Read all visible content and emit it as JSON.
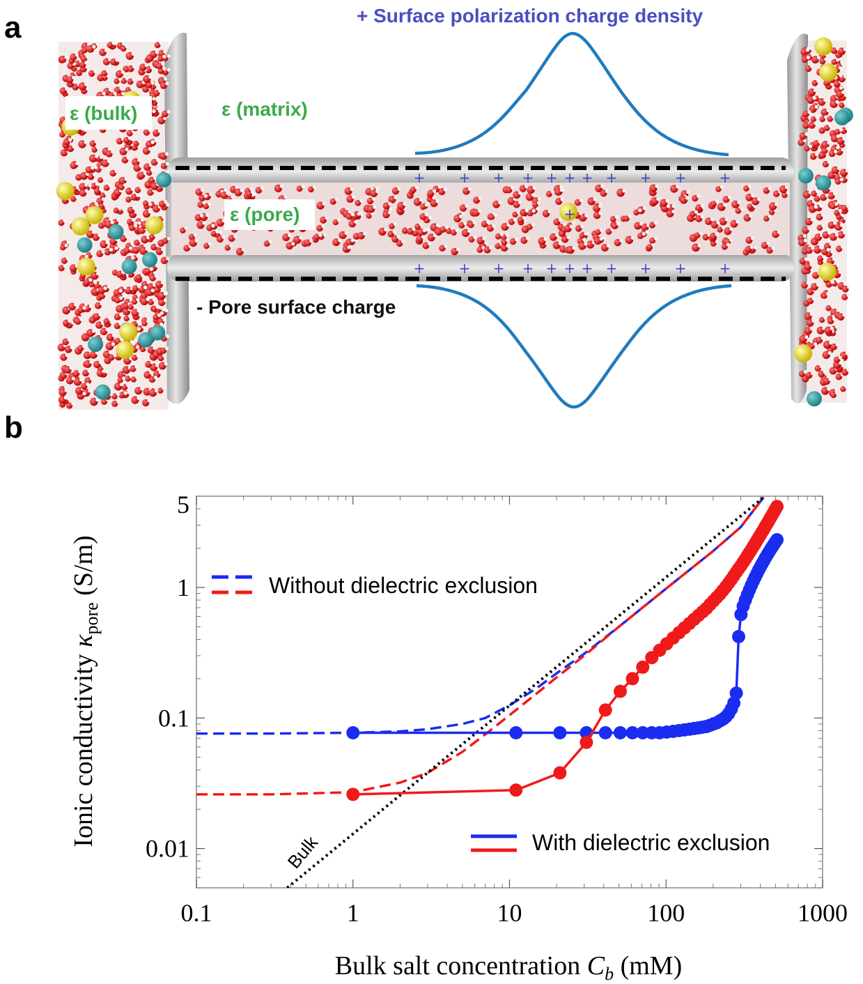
{
  "panel_a": {
    "label": "a",
    "eps_bulk": "ε (bulk)",
    "eps_matrix": "ε (matrix)",
    "eps_pore": "ε (pore)",
    "polarization_label": "+ Surface polarization charge density",
    "surface_charge_label": "- Pore surface charge",
    "plus_sign": "+"
  },
  "panel_b": {
    "label": "b"
  },
  "chart_data": {
    "type": "line",
    "xlabel": "Bulk salt concentration C_b (mM)",
    "xlabel_parts": {
      "prefix": "Bulk salt concentration ",
      "var": "C",
      "sub": "b",
      "suffix": " (mM)"
    },
    "ylabel": "Ionic conductivity κ_pore (S/m)",
    "ylabel_parts": {
      "prefix": "Ionic conductivity ",
      "var": "κ",
      "sub": "pore",
      "suffix": " (S/m)"
    },
    "x_scale": "log",
    "y_scale": "log",
    "xlim": [
      0.1,
      1000
    ],
    "ylim": [
      0.005,
      5
    ],
    "x_ticks": [
      0.1,
      1,
      10,
      100,
      1000
    ],
    "x_tick_labels": [
      "0.1",
      "1",
      "10",
      "100",
      "1000"
    ],
    "y_ticks": [
      0.01,
      0.1,
      1,
      5
    ],
    "y_tick_labels": [
      "0.01",
      "0.1",
      "1",
      "5"
    ],
    "legend": [
      {
        "label": "Without dielectric exclusion",
        "style": "dashed",
        "colors": [
          "#1a2cf0",
          "#f01a1a"
        ]
      },
      {
        "label": "With dielectric exclusion",
        "style": "solid",
        "colors": [
          "#1a2cf0",
          "#f01a1a"
        ]
      }
    ],
    "annotation": "Bulk",
    "series": [
      {
        "color": "#1a2cf0",
        "style": "dashed",
        "x": [
          0.1,
          0.3,
          1,
          2,
          3,
          5,
          7,
          10,
          15,
          20,
          30,
          50,
          100,
          200,
          300,
          420
        ],
        "y": [
          0.076,
          0.076,
          0.077,
          0.079,
          0.082,
          0.09,
          0.1,
          0.125,
          0.17,
          0.22,
          0.31,
          0.5,
          0.98,
          1.9,
          2.9,
          4.9
        ]
      },
      {
        "color": "#f01a1a",
        "style": "dashed",
        "x": [
          0.1,
          0.3,
          1,
          2,
          3,
          5,
          7,
          10,
          15,
          20,
          30,
          50,
          100,
          200,
          300,
          420
        ],
        "y": [
          0.026,
          0.026,
          0.027,
          0.032,
          0.038,
          0.055,
          0.075,
          0.105,
          0.155,
          0.205,
          0.3,
          0.5,
          0.98,
          1.9,
          2.9,
          4.9
        ]
      },
      {
        "color": "#000000",
        "style": "dotted",
        "x": [
          0.38,
          420
        ],
        "y": [
          0.005,
          4.9
        ]
      },
      {
        "color": "#1a2cf0",
        "style": "solid-markers",
        "x": [
          1,
          11,
          21,
          31,
          41,
          51,
          61,
          71,
          81,
          91,
          101,
          111,
          121,
          131,
          141,
          151,
          161,
          171,
          181,
          191,
          201,
          211,
          221,
          231,
          241,
          251,
          261,
          271,
          281,
          291,
          301,
          311,
          321,
          331,
          341,
          351,
          361,
          371,
          381,
          391,
          401,
          411,
          421,
          431,
          441,
          451,
          461,
          471,
          481,
          491,
          501,
          511
        ],
        "y": [
          0.077,
          0.077,
          0.077,
          0.077,
          0.077,
          0.077,
          0.077,
          0.077,
          0.077,
          0.077,
          0.078,
          0.079,
          0.08,
          0.081,
          0.082,
          0.083,
          0.084,
          0.085,
          0.086,
          0.088,
          0.09,
          0.092,
          0.095,
          0.098,
          0.102,
          0.108,
          0.117,
          0.13,
          0.155,
          0.42,
          0.62,
          0.72,
          0.8,
          0.88,
          0.96,
          1.04,
          1.12,
          1.2,
          1.28,
          1.36,
          1.44,
          1.52,
          1.6,
          1.68,
          1.76,
          1.84,
          1.92,
          2.0,
          2.08,
          2.16,
          2.24,
          2.32
        ]
      },
      {
        "color": "#f01a1a",
        "style": "solid-markers",
        "x": [
          1,
          11,
          21,
          31,
          41,
          51,
          61,
          71,
          81,
          91,
          101,
          111,
          121,
          131,
          141,
          151,
          161,
          171,
          181,
          191,
          201,
          211,
          221,
          231,
          241,
          251,
          261,
          271,
          281,
          291,
          301,
          311,
          321,
          331,
          341,
          351,
          361,
          371,
          381,
          391,
          401,
          411,
          421,
          431,
          441,
          451,
          461,
          471,
          481,
          491,
          501,
          511
        ],
        "y": [
          0.026,
          0.028,
          0.038,
          0.065,
          0.115,
          0.16,
          0.2,
          0.245,
          0.29,
          0.33,
          0.37,
          0.41,
          0.45,
          0.49,
          0.53,
          0.57,
          0.61,
          0.65,
          0.69,
          0.74,
          0.79,
          0.84,
          0.89,
          0.95,
          1.01,
          1.08,
          1.15,
          1.23,
          1.31,
          1.39,
          1.47,
          1.56,
          1.65,
          1.75,
          1.85,
          1.95,
          2.06,
          2.17,
          2.29,
          2.41,
          2.53,
          2.66,
          2.79,
          2.93,
          3.07,
          3.21,
          3.36,
          3.51,
          3.67,
          3.83,
          4.0,
          4.17
        ]
      }
    ]
  }
}
